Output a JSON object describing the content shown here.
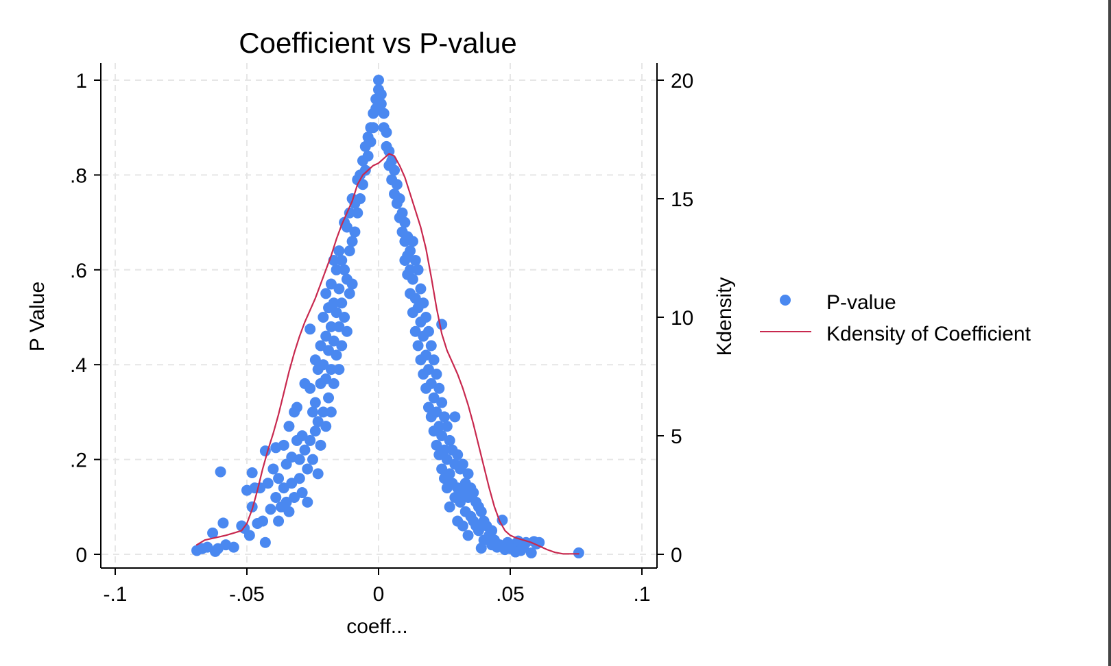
{
  "chart_data": {
    "type": "scatter",
    "title": "Coefficient vs P-value",
    "xlabel": "coeff...",
    "ylabel": "P Value",
    "y2label": "Kdensity",
    "xlim": [
      -0.1,
      0.1
    ],
    "ylim": [
      0,
      1
    ],
    "y2lim": [
      0,
      20
    ],
    "x_ticks": [
      {
        "value": -0.1,
        "label": "-.1"
      },
      {
        "value": -0.05,
        "label": "-.05"
      },
      {
        "value": 0,
        "label": "0"
      },
      {
        "value": 0.05,
        "label": ".05"
      },
      {
        "value": 0.1,
        "label": ".1"
      }
    ],
    "y_ticks": [
      {
        "value": 0,
        "label": "0"
      },
      {
        "value": 0.2,
        "label": ".2"
      },
      {
        "value": 0.4,
        "label": ".4"
      },
      {
        "value": 0.6,
        "label": ".6"
      },
      {
        "value": 0.8,
        "label": ".8"
      },
      {
        "value": 1,
        "label": "1"
      }
    ],
    "y2_ticks": [
      {
        "value": 0,
        "label": "0"
      },
      {
        "value": 5,
        "label": "5"
      },
      {
        "value": 10,
        "label": "10"
      },
      {
        "value": 15,
        "label": "15"
      },
      {
        "value": 20,
        "label": "20"
      }
    ],
    "grid": true,
    "legend_position": "right",
    "colors": {
      "scatter": "#4a88f0",
      "line": "#c8284e",
      "grid": "#e6e6e6",
      "axis": "#000000"
    },
    "series": [
      {
        "name": "P-value",
        "type": "scatter",
        "axis": "left",
        "points": [
          [
            -0.069,
            0.008
          ],
          [
            -0.067,
            0.012
          ],
          [
            -0.065,
            0.015
          ],
          [
            -0.063,
            0.045
          ],
          [
            -0.062,
            0.006
          ],
          [
            -0.061,
            0.012
          ],
          [
            -0.06,
            0.174
          ],
          [
            -0.059,
            0.066
          ],
          [
            -0.058,
            0.02
          ],
          [
            -0.055,
            0.015
          ],
          [
            -0.052,
            0.06
          ],
          [
            -0.051,
            0.055
          ],
          [
            -0.05,
            0.135
          ],
          [
            -0.049,
            0.04
          ],
          [
            -0.048,
            0.172
          ],
          [
            -0.048,
            0.1
          ],
          [
            -0.047,
            0.14
          ],
          [
            -0.046,
            0.065
          ],
          [
            -0.045,
            0.14
          ],
          [
            -0.044,
            0.07
          ],
          [
            -0.043,
            0.025
          ],
          [
            -0.043,
            0.218
          ],
          [
            -0.042,
            0.15
          ],
          [
            -0.041,
            0.095
          ],
          [
            -0.04,
            0.18
          ],
          [
            -0.039,
            0.225
          ],
          [
            -0.039,
            0.12
          ],
          [
            -0.038,
            0.07
          ],
          [
            -0.038,
            0.16
          ],
          [
            -0.037,
            0.1
          ],
          [
            -0.036,
            0.23
          ],
          [
            -0.036,
            0.14
          ],
          [
            -0.035,
            0.19
          ],
          [
            -0.035,
            0.11
          ],
          [
            -0.034,
            0.27
          ],
          [
            -0.034,
            0.09
          ],
          [
            -0.033,
            0.205
          ],
          [
            -0.033,
            0.15
          ],
          [
            -0.032,
            0.3
          ],
          [
            -0.032,
            0.12
          ],
          [
            -0.031,
            0.31
          ],
          [
            -0.031,
            0.24
          ],
          [
            -0.03,
            0.2
          ],
          [
            -0.03,
            0.16
          ],
          [
            -0.029,
            0.25
          ],
          [
            -0.029,
            0.13
          ],
          [
            -0.028,
            0.36
          ],
          [
            -0.028,
            0.22
          ],
          [
            -0.027,
            0.18
          ],
          [
            -0.027,
            0.11
          ],
          [
            -0.026,
            0.475
          ],
          [
            -0.026,
            0.35
          ],
          [
            -0.026,
            0.24
          ],
          [
            -0.025,
            0.3
          ],
          [
            -0.025,
            0.2
          ],
          [
            -0.024,
            0.41
          ],
          [
            -0.024,
            0.32
          ],
          [
            -0.024,
            0.26
          ],
          [
            -0.023,
            0.39
          ],
          [
            -0.023,
            0.28
          ],
          [
            -0.023,
            0.17
          ],
          [
            -0.022,
            0.44
          ],
          [
            -0.022,
            0.36
          ],
          [
            -0.022,
            0.23
          ],
          [
            -0.021,
            0.5
          ],
          [
            -0.021,
            0.4
          ],
          [
            -0.021,
            0.3
          ],
          [
            -0.02,
            0.55
          ],
          [
            -0.02,
            0.46
          ],
          [
            -0.02,
            0.37
          ],
          [
            -0.02,
            0.27
          ],
          [
            -0.019,
            0.52
          ],
          [
            -0.019,
            0.43
          ],
          [
            -0.019,
            0.33
          ],
          [
            -0.018,
            0.57
          ],
          [
            -0.018,
            0.48
          ],
          [
            -0.018,
            0.39
          ],
          [
            -0.018,
            0.3
          ],
          [
            -0.017,
            0.62
          ],
          [
            -0.017,
            0.53
          ],
          [
            -0.017,
            0.45
          ],
          [
            -0.017,
            0.36
          ],
          [
            -0.016,
            0.6
          ],
          [
            -0.016,
            0.51
          ],
          [
            -0.016,
            0.42
          ],
          [
            -0.015,
            0.64
          ],
          [
            -0.015,
            0.56
          ],
          [
            -0.015,
            0.48
          ],
          [
            -0.015,
            0.39
          ],
          [
            -0.014,
            0.62
          ],
          [
            -0.014,
            0.53
          ],
          [
            -0.014,
            0.44
          ],
          [
            -0.013,
            0.7
          ],
          [
            -0.013,
            0.6
          ],
          [
            -0.013,
            0.5
          ],
          [
            -0.012,
            0.69
          ],
          [
            -0.012,
            0.58
          ],
          [
            -0.012,
            0.47
          ],
          [
            -0.011,
            0.72
          ],
          [
            -0.011,
            0.64
          ],
          [
            -0.011,
            0.55
          ],
          [
            -0.01,
            0.75
          ],
          [
            -0.01,
            0.66
          ],
          [
            -0.01,
            0.57
          ],
          [
            -0.009,
            0.74
          ],
          [
            -0.009,
            0.68
          ],
          [
            -0.008,
            0.79
          ],
          [
            -0.008,
            0.72
          ],
          [
            -0.007,
            0.8
          ],
          [
            -0.007,
            0.75
          ],
          [
            -0.006,
            0.83
          ],
          [
            -0.006,
            0.78
          ],
          [
            -0.005,
            0.86
          ],
          [
            -0.005,
            0.81
          ],
          [
            -0.004,
            0.88
          ],
          [
            -0.004,
            0.84
          ],
          [
            -0.003,
            0.9
          ],
          [
            -0.003,
            0.87
          ],
          [
            -0.002,
            0.93
          ],
          [
            -0.002,
            0.9
          ],
          [
            -0.001,
            0.96
          ],
          [
            -0.001,
            0.94
          ],
          [
            0.0,
            1.0
          ],
          [
            0.0,
            0.98
          ],
          [
            0.001,
            0.97
          ],
          [
            0.001,
            0.95
          ],
          [
            0.002,
            0.93
          ],
          [
            0.002,
            0.9
          ],
          [
            0.003,
            0.89
          ],
          [
            0.003,
            0.86
          ],
          [
            0.004,
            0.85
          ],
          [
            0.004,
            0.82
          ],
          [
            0.005,
            0.83
          ],
          [
            0.005,
            0.79
          ],
          [
            0.006,
            0.81
          ],
          [
            0.006,
            0.76
          ],
          [
            0.007,
            0.78
          ],
          [
            0.007,
            0.74
          ],
          [
            0.008,
            0.75
          ],
          [
            0.008,
            0.71
          ],
          [
            0.009,
            0.72
          ],
          [
            0.009,
            0.68
          ],
          [
            0.01,
            0.7
          ],
          [
            0.01,
            0.66
          ],
          [
            0.01,
            0.62
          ],
          [
            0.011,
            0.67
          ],
          [
            0.011,
            0.63
          ],
          [
            0.011,
            0.59
          ],
          [
            0.012,
            0.64
          ],
          [
            0.012,
            0.6
          ],
          [
            0.012,
            0.55
          ],
          [
            0.013,
            0.66
          ],
          [
            0.013,
            0.58
          ],
          [
            0.013,
            0.51
          ],
          [
            0.014,
            0.62
          ],
          [
            0.014,
            0.54
          ],
          [
            0.014,
            0.47
          ],
          [
            0.015,
            0.6
          ],
          [
            0.015,
            0.52
          ],
          [
            0.015,
            0.44
          ],
          [
            0.016,
            0.56
          ],
          [
            0.016,
            0.49
          ],
          [
            0.016,
            0.41
          ],
          [
            0.017,
            0.53
          ],
          [
            0.017,
            0.46
          ],
          [
            0.017,
            0.38
          ],
          [
            0.018,
            0.5
          ],
          [
            0.018,
            0.42
          ],
          [
            0.018,
            0.35
          ],
          [
            0.019,
            0.47
          ],
          [
            0.019,
            0.39
          ],
          [
            0.019,
            0.31
          ],
          [
            0.02,
            0.44
          ],
          [
            0.02,
            0.36
          ],
          [
            0.02,
            0.29
          ],
          [
            0.021,
            0.41
          ],
          [
            0.021,
            0.33
          ],
          [
            0.021,
            0.26
          ],
          [
            0.022,
            0.38
          ],
          [
            0.022,
            0.3
          ],
          [
            0.022,
            0.23
          ],
          [
            0.023,
            0.35
          ],
          [
            0.023,
            0.27
          ],
          [
            0.023,
            0.21
          ],
          [
            0.024,
            0.485
          ],
          [
            0.024,
            0.32
          ],
          [
            0.024,
            0.25
          ],
          [
            0.024,
            0.18
          ],
          [
            0.025,
            0.29
          ],
          [
            0.025,
            0.22
          ],
          [
            0.025,
            0.16
          ],
          [
            0.026,
            0.27
          ],
          [
            0.026,
            0.2
          ],
          [
            0.026,
            0.14
          ],
          [
            0.027,
            0.24
          ],
          [
            0.027,
            0.17
          ],
          [
            0.027,
            0.1
          ],
          [
            0.028,
            0.22
          ],
          [
            0.028,
            0.15
          ],
          [
            0.029,
            0.29
          ],
          [
            0.029,
            0.19
          ],
          [
            0.029,
            0.12
          ],
          [
            0.03,
            0.21
          ],
          [
            0.03,
            0.14
          ],
          [
            0.03,
            0.07
          ],
          [
            0.031,
            0.18
          ],
          [
            0.031,
            0.11
          ],
          [
            0.032,
            0.19
          ],
          [
            0.032,
            0.13
          ],
          [
            0.032,
            0.06
          ],
          [
            0.033,
            0.15
          ],
          [
            0.033,
            0.09
          ],
          [
            0.034,
            0.17
          ],
          [
            0.034,
            0.12
          ],
          [
            0.034,
            0.04
          ],
          [
            0.035,
            0.14
          ],
          [
            0.035,
            0.08
          ],
          [
            0.036,
            0.13
          ],
          [
            0.036,
            0.07
          ],
          [
            0.037,
            0.11
          ],
          [
            0.037,
            0.06
          ],
          [
            0.038,
            0.1
          ],
          [
            0.038,
            0.05
          ],
          [
            0.039,
            0.09
          ],
          [
            0.039,
            0.013
          ],
          [
            0.04,
            0.07
          ],
          [
            0.04,
            0.03
          ],
          [
            0.041,
            0.06
          ],
          [
            0.042,
            0.04
          ],
          [
            0.043,
            0.05
          ],
          [
            0.043,
            0.02
          ],
          [
            0.044,
            0.03
          ],
          [
            0.045,
            0.015
          ],
          [
            0.046,
            0.02
          ],
          [
            0.047,
            0.072
          ],
          [
            0.048,
            0.01
          ],
          [
            0.049,
            0.025
          ],
          [
            0.05,
            0.012
          ],
          [
            0.051,
            0.02
          ],
          [
            0.052,
            0.005
          ],
          [
            0.053,
            0.028
          ],
          [
            0.054,
            0.008
          ],
          [
            0.055,
            0.015
          ],
          [
            0.056,
            0.025
          ],
          [
            0.058,
            0.003
          ],
          [
            0.059,
            0.027
          ],
          [
            0.06,
            0.022
          ],
          [
            0.061,
            0.025
          ],
          [
            0.076,
            0.003
          ]
        ]
      },
      {
        "name": "Kdensity of Coefficient",
        "type": "line",
        "axis": "right",
        "x": [
          -0.069,
          -0.066,
          -0.062,
          -0.058,
          -0.055,
          -0.052,
          -0.05,
          -0.048,
          -0.046,
          -0.044,
          -0.042,
          -0.04,
          -0.038,
          -0.036,
          -0.034,
          -0.032,
          -0.03,
          -0.028,
          -0.026,
          -0.024,
          -0.022,
          -0.02,
          -0.018,
          -0.016,
          -0.014,
          -0.012,
          -0.01,
          -0.008,
          -0.006,
          -0.004,
          -0.002,
          0.0,
          0.002,
          0.004,
          0.006,
          0.008,
          0.01,
          0.012,
          0.014,
          0.016,
          0.018,
          0.02,
          0.022,
          0.024,
          0.026,
          0.028,
          0.03,
          0.032,
          0.034,
          0.036,
          0.038,
          0.04,
          0.042,
          0.044,
          0.046,
          0.048,
          0.05,
          0.052,
          0.055,
          0.058,
          0.061,
          0.064,
          0.067,
          0.07,
          0.073,
          0.076
        ],
        "values": [
          0.4,
          0.6,
          0.7,
          0.8,
          0.9,
          1.0,
          1.3,
          1.9,
          2.7,
          3.6,
          4.4,
          5.1,
          5.9,
          6.8,
          7.7,
          8.5,
          9.2,
          9.8,
          10.3,
          10.8,
          11.4,
          12.0,
          12.6,
          13.3,
          13.9,
          14.4,
          14.9,
          15.6,
          16.0,
          16.2,
          16.4,
          16.5,
          16.7,
          16.9,
          16.8,
          16.4,
          15.9,
          15.2,
          14.5,
          13.8,
          12.9,
          11.7,
          10.4,
          9.3,
          8.6,
          8.1,
          7.6,
          7.0,
          6.3,
          5.5,
          4.6,
          3.7,
          2.8,
          2.0,
          1.4,
          1.0,
          0.8,
          0.7,
          0.6,
          0.5,
          0.35,
          0.2,
          0.08,
          0.02,
          0.02,
          0.02
        ]
      }
    ]
  }
}
